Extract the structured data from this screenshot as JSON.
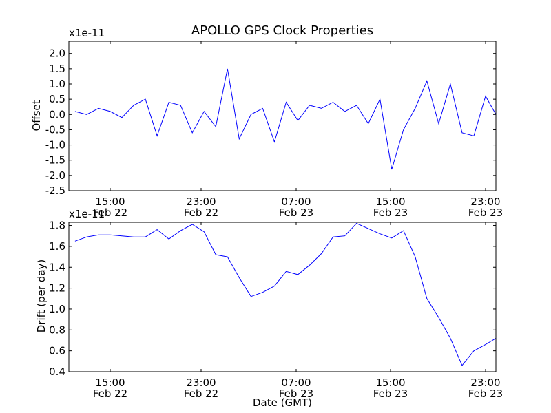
{
  "chart_data": [
    {
      "type": "line",
      "title": "APOLLO GPS Clock Properties",
      "ylabel": "Offset",
      "xlabel": "",
      "y_offset_text": "x1e-11",
      "ylim": [
        -2.5,
        2.4
      ],
      "y_ticks": [
        "2.0",
        "1.5",
        "1.0",
        "0.5",
        "0.0",
        "-0.5",
        "-1.0",
        "-1.5",
        "-2.0",
        "-2.5"
      ],
      "x_ticks": [
        {
          "time": "15:00",
          "date": "Feb 22"
        },
        {
          "time": "23:00",
          "date": "Feb 22"
        },
        {
          "time": "07:00",
          "date": "Feb 23"
        },
        {
          "time": "15:00",
          "date": "Feb 23"
        },
        {
          "time": "23:00",
          "date": "Feb 23"
        }
      ],
      "series": [
        {
          "color": "#0000ff",
          "x": [
            "Feb 22 12:00",
            "Feb 22 13:00",
            "Feb 22 14:00",
            "Feb 22 15:00",
            "Feb 22 16:00",
            "Feb 22 17:00",
            "Feb 22 18:00",
            "Feb 22 19:00",
            "Feb 22 20:00",
            "Feb 22 21:00",
            "Feb 22 22:00",
            "Feb 22 23:00",
            "Feb 23 00:00",
            "Feb 23 01:00",
            "Feb 23 02:00",
            "Feb 23 03:00",
            "Feb 23 04:00",
            "Feb 23 05:00",
            "Feb 23 06:00",
            "Feb 23 07:00",
            "Feb 23 08:00",
            "Feb 23 09:00",
            "Feb 23 10:00",
            "Feb 23 11:00",
            "Feb 23 12:00",
            "Feb 23 13:00",
            "Feb 23 14:00",
            "Feb 23 15:00",
            "Feb 23 16:00",
            "Feb 23 17:00",
            "Feb 23 18:00",
            "Feb 23 19:00",
            "Feb 23 20:00",
            "Feb 23 21:00",
            "Feb 23 22:00",
            "Feb 23 23:00",
            "Feb 24 00:00"
          ],
          "y": [
            0.1,
            0.0,
            0.2,
            0.1,
            -0.1,
            0.3,
            0.5,
            -0.7,
            0.4,
            0.3,
            -0.6,
            0.1,
            -0.4,
            1.5,
            -0.8,
            0.0,
            0.2,
            -0.9,
            0.4,
            -0.2,
            0.3,
            0.2,
            0.4,
            0.1,
            0.3,
            -0.3,
            0.5,
            -1.8,
            -0.5,
            0.2,
            1.1,
            -0.3,
            1.0,
            -0.6,
            -0.7,
            0.6,
            0.0
          ]
        }
      ]
    },
    {
      "type": "line",
      "title": "",
      "ylabel": "Drift (per day)",
      "xlabel": "Date (GMT)",
      "y_offset_text": "x1e-11",
      "ylim": [
        0.4,
        1.83
      ],
      "y_ticks": [
        "1.8",
        "1.6",
        "1.4",
        "1.2",
        "1.0",
        "0.8",
        "0.6",
        "0.4"
      ],
      "x_ticks": [
        {
          "time": "15:00",
          "date": "Feb 22"
        },
        {
          "time": "23:00",
          "date": "Feb 22"
        },
        {
          "time": "07:00",
          "date": "Feb 23"
        },
        {
          "time": "15:00",
          "date": "Feb 23"
        },
        {
          "time": "23:00",
          "date": "Feb 23"
        }
      ],
      "series": [
        {
          "color": "#0000ff",
          "x": [
            "Feb 22 12:00",
            "Feb 22 13:00",
            "Feb 22 14:00",
            "Feb 22 15:00",
            "Feb 22 16:00",
            "Feb 22 17:00",
            "Feb 22 18:00",
            "Feb 22 19:00",
            "Feb 22 20:00",
            "Feb 22 21:00",
            "Feb 22 22:00",
            "Feb 22 23:00",
            "Feb 23 00:00",
            "Feb 23 01:00",
            "Feb 23 02:00",
            "Feb 23 03:00",
            "Feb 23 04:00",
            "Feb 23 05:00",
            "Feb 23 06:00",
            "Feb 23 07:00",
            "Feb 23 08:00",
            "Feb 23 09:00",
            "Feb 23 10:00",
            "Feb 23 11:00",
            "Feb 23 12:00",
            "Feb 23 13:00",
            "Feb 23 14:00",
            "Feb 23 15:00",
            "Feb 23 16:00",
            "Feb 23 17:00",
            "Feb 23 18:00",
            "Feb 23 19:00",
            "Feb 23 20:00",
            "Feb 23 21:00",
            "Feb 23 22:00",
            "Feb 23 23:00",
            "Feb 24 00:00"
          ],
          "y": [
            1.65,
            1.69,
            1.71,
            1.71,
            1.7,
            1.69,
            1.69,
            1.76,
            1.67,
            1.75,
            1.81,
            1.74,
            1.52,
            1.5,
            1.3,
            1.12,
            1.16,
            1.22,
            1.36,
            1.33,
            1.42,
            1.53,
            1.69,
            1.7,
            1.82,
            1.77,
            1.72,
            1.68,
            1.75,
            1.5,
            1.1,
            0.92,
            0.72,
            0.46,
            0.6,
            0.66,
            0.72
          ]
        }
      ]
    }
  ]
}
